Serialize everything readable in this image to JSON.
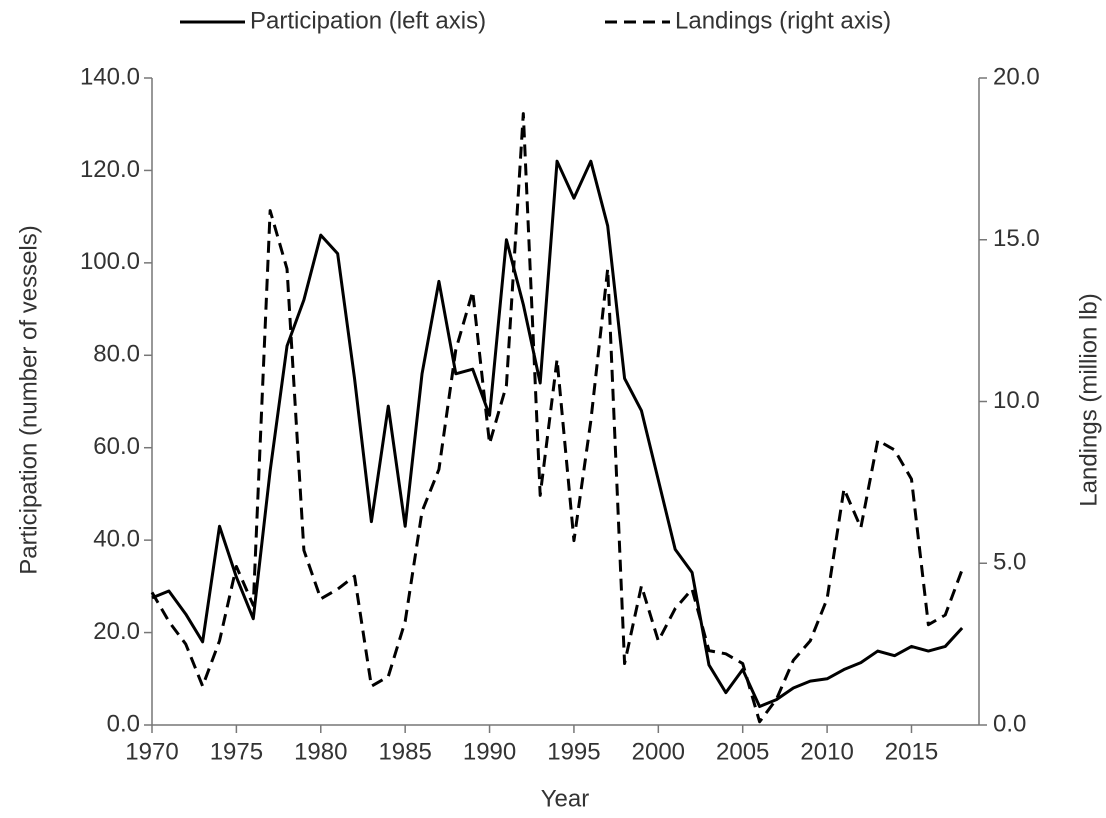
{
  "chart_data": {
    "type": "line",
    "xlabel": "Year",
    "ylabel": "Participation (number of vessels)",
    "y2label": "Landings (million lb)",
    "legend": "top",
    "x": [
      1970,
      1971,
      1972,
      1973,
      1974,
      1975,
      1976,
      1977,
      1978,
      1979,
      1980,
      1981,
      1982,
      1983,
      1984,
      1985,
      1986,
      1987,
      1988,
      1989,
      1990,
      1991,
      1992,
      1993,
      1994,
      1995,
      1996,
      1997,
      1998,
      1999,
      2000,
      2001,
      2002,
      2003,
      2004,
      2005,
      2006,
      2007,
      2008,
      2009,
      2010,
      2011,
      2012,
      2013,
      2014,
      2015,
      2016,
      2017,
      2018
    ],
    "series": [
      {
        "name": "Participation (left axis)",
        "color": "#000000",
        "dash": "solid",
        "values": [
          27.5,
          29,
          24,
          18,
          43,
          32,
          23,
          55,
          82,
          92,
          106,
          102,
          75,
          44,
          69,
          43,
          76,
          96,
          76,
          77,
          67,
          105,
          91,
          74,
          122,
          114,
          122,
          108,
          75,
          68,
          53,
          38,
          33,
          13,
          7,
          12,
          4,
          5.5,
          8,
          9.5,
          10,
          12,
          13.5,
          16,
          15,
          17,
          16,
          17,
          21
        ]
      },
      {
        "name": "Landings (right axis)",
        "color": "#000000",
        "dash": "dashed",
        "axis": "y2",
        "values": [
          4.1,
          3.2,
          2.5,
          1.2,
          2.6,
          4.9,
          3.7,
          15.9,
          14.1,
          5.4,
          3.9,
          4.2,
          4.6,
          1.2,
          1.5,
          3.2,
          6.6,
          7.9,
          11.6,
          13.4,
          8.7,
          10.5,
          18.9,
          7.1,
          11.3,
          5.7,
          9.4,
          14.1,
          1.9,
          4.3,
          2.6,
          3.6,
          4.2,
          2.3,
          2.2,
          1.9,
          0.1,
          0.8,
          2.0,
          2.6,
          3.9,
          7.3,
          6.1,
          8.8,
          8.5,
          7.6,
          3.1,
          3.4,
          4.8
        ]
      }
    ],
    "xlim": [
      1970,
      2019
    ],
    "xticks": [
      1970,
      1975,
      1980,
      1985,
      1990,
      1995,
      2000,
      2005,
      2010,
      2015
    ],
    "ylim": [
      0,
      140
    ],
    "yticks": [
      {
        "value": 0,
        "label": "0.0"
      },
      {
        "value": 20,
        "label": "20.0"
      },
      {
        "value": 40,
        "label": "40.0"
      },
      {
        "value": 60,
        "label": "60.0"
      },
      {
        "value": 80,
        "label": "80.0"
      },
      {
        "value": 100,
        "label": "100.0"
      },
      {
        "value": 120,
        "label": "120.0"
      },
      {
        "value": 140,
        "label": "140.0"
      }
    ],
    "y2lim": [
      0,
      20
    ],
    "y2ticks": [
      {
        "value": 0,
        "label": "0.0"
      },
      {
        "value": 5,
        "label": "5.0"
      },
      {
        "value": 10,
        "label": "10.0"
      },
      {
        "value": 15,
        "label": "15.0"
      },
      {
        "value": 20,
        "label": "20.0"
      }
    ]
  }
}
